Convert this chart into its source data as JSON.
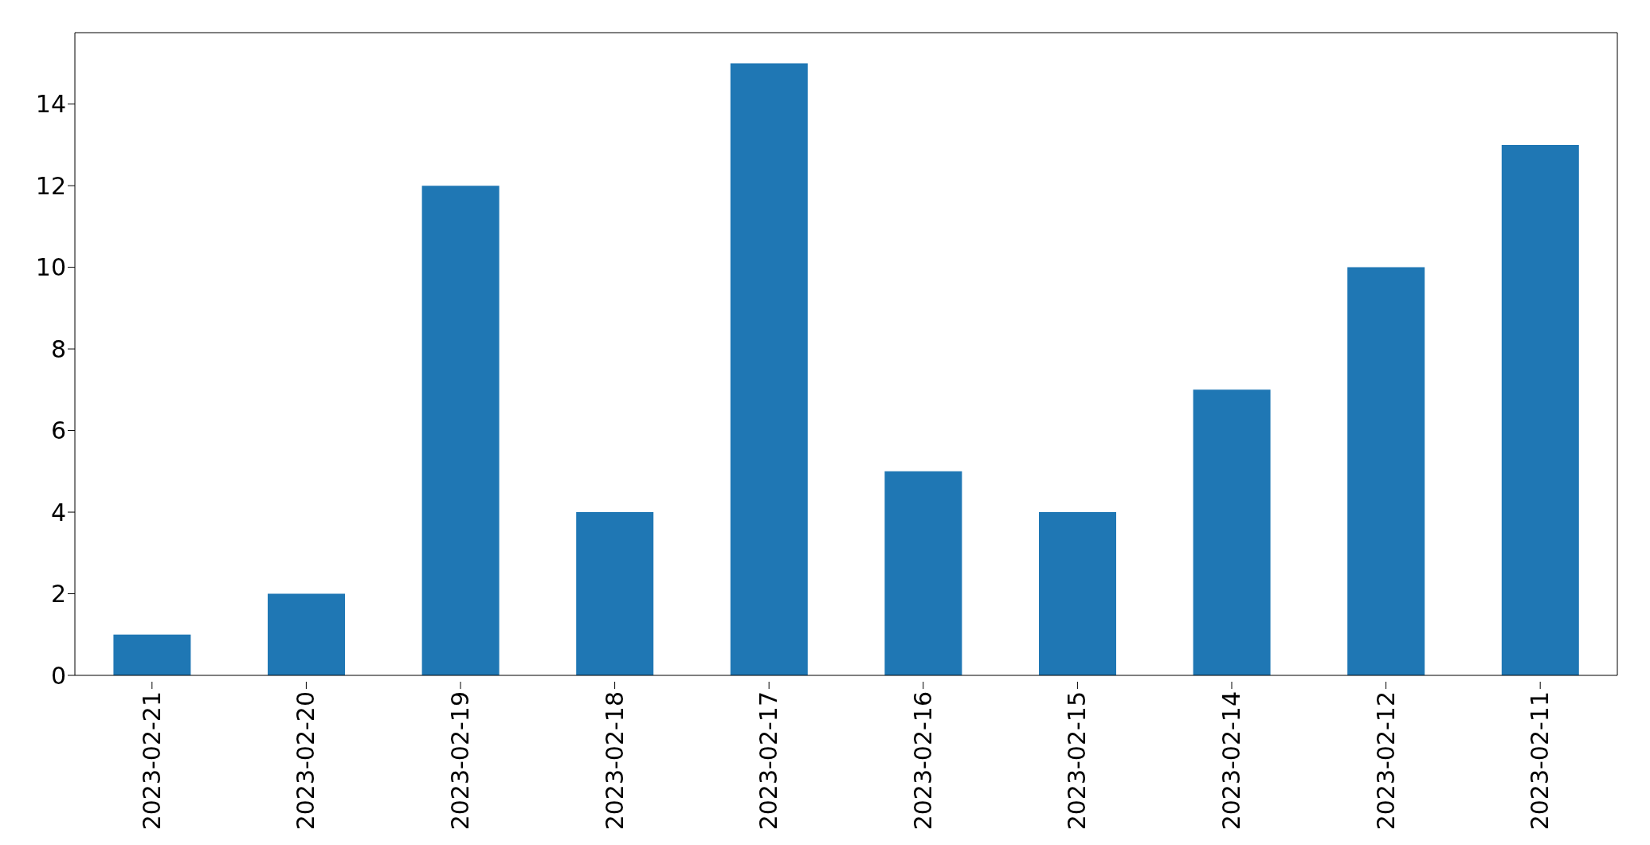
{
  "chart_data": {
    "type": "bar",
    "categories": [
      "2023-02-21",
      "2023-02-20",
      "2023-02-19",
      "2023-02-18",
      "2023-02-17",
      "2023-02-16",
      "2023-02-15",
      "2023-02-14",
      "2023-02-12",
      "2023-02-11"
    ],
    "values": [
      1,
      2,
      12,
      4,
      15,
      5,
      4,
      7,
      10,
      13
    ],
    "color": "#1f77b4",
    "ylim": [
      0,
      15.75
    ],
    "yticks": [
      0,
      2,
      4,
      6,
      8,
      10,
      12,
      14
    ],
    "grid": false,
    "legend": false
  }
}
